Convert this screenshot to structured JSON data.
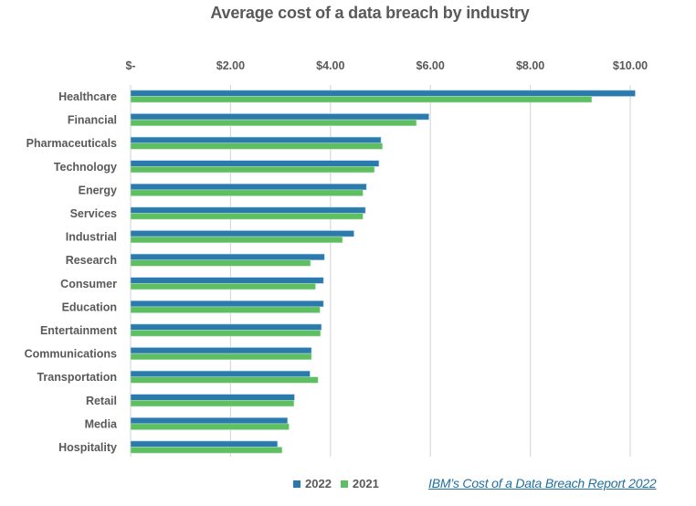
{
  "chart_data": {
    "type": "bar",
    "orientation": "horizontal",
    "title": "Average cost of a data breach by industry",
    "xlabel": "",
    "ylabel": "",
    "xlim": [
      0,
      10
    ],
    "x_ticks": [
      0,
      2,
      4,
      6,
      8,
      10
    ],
    "x_tick_labels": [
      "$-",
      "$2.00",
      "$4.00",
      "$6.00",
      "$8.00",
      "$10.00"
    ],
    "x_axis_position": "top",
    "grid": true,
    "legend_position": "bottom",
    "categories": [
      "Healthcare",
      "Financial",
      "Pharmaceuticals",
      "Technology",
      "Energy",
      "Services",
      "Industrial",
      "Research",
      "Consumer",
      "Education",
      "Entertainment",
      "Communications",
      "Transportation",
      "Retail",
      "Media",
      "Hospitality"
    ],
    "series": [
      {
        "name": "2022",
        "color": "#2a7aad",
        "values": [
          10.1,
          5.97,
          5.01,
          4.97,
          4.72,
          4.7,
          4.47,
          3.88,
          3.86,
          3.86,
          3.82,
          3.62,
          3.59,
          3.28,
          3.14,
          2.94
        ]
      },
      {
        "name": "2021",
        "color": "#5ebe62",
        "values": [
          9.23,
          5.72,
          5.04,
          4.88,
          4.65,
          4.65,
          4.24,
          3.6,
          3.7,
          3.79,
          3.8,
          3.62,
          3.75,
          3.27,
          3.17,
          3.03
        ]
      }
    ]
  },
  "legend": {
    "items": [
      {
        "label": "2022",
        "color": "#2a7aad"
      },
      {
        "label": "2021",
        "color": "#5ebe62"
      }
    ]
  },
  "source": {
    "label": "IBM’s Cost of a Data Breach Report 2022"
  }
}
